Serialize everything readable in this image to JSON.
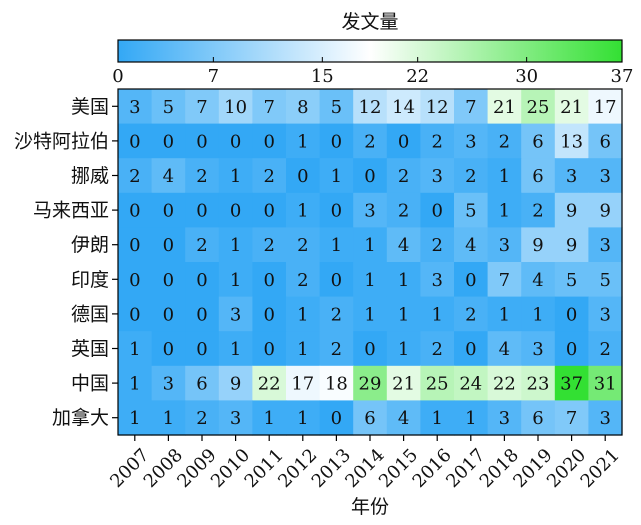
{
  "chart_data": {
    "type": "heatmap",
    "title": "发文量",
    "xlabel": "年份",
    "ylabel": "",
    "x": [
      "2007",
      "2008",
      "2009",
      "2010",
      "2011",
      "2012",
      "2013",
      "2014",
      "2015",
      "2016",
      "2017",
      "2018",
      "2019",
      "2020",
      "2021"
    ],
    "y": [
      "美国",
      "沙特阿拉伯",
      "挪威",
      "马来西亚",
      "伊朗",
      "印度",
      "德国",
      "英国",
      "中国",
      "加拿大"
    ],
    "values": [
      [
        3,
        5,
        7,
        10,
        7,
        8,
        5,
        12,
        14,
        12,
        7,
        21,
        25,
        21,
        17
      ],
      [
        0,
        0,
        0,
        0,
        0,
        1,
        0,
        2,
        0,
        2,
        3,
        2,
        6,
        13,
        6
      ],
      [
        2,
        4,
        2,
        1,
        2,
        0,
        1,
        0,
        2,
        3,
        2,
        1,
        6,
        3,
        3
      ],
      [
        0,
        0,
        0,
        0,
        0,
        1,
        0,
        3,
        2,
        0,
        5,
        1,
        2,
        9,
        9
      ],
      [
        0,
        0,
        2,
        1,
        2,
        2,
        1,
        1,
        4,
        2,
        4,
        3,
        9,
        9,
        3
      ],
      [
        0,
        0,
        0,
        1,
        0,
        2,
        0,
        1,
        1,
        3,
        0,
        7,
        4,
        5,
        5
      ],
      [
        0,
        0,
        0,
        3,
        0,
        1,
        2,
        1,
        1,
        1,
        2,
        1,
        1,
        0,
        3
      ],
      [
        1,
        0,
        0,
        1,
        0,
        1,
        2,
        0,
        1,
        2,
        0,
        4,
        3,
        0,
        2
      ],
      [
        1,
        3,
        6,
        9,
        22,
        17,
        18,
        29,
        21,
        25,
        24,
        22,
        23,
        37,
        31
      ],
      [
        1,
        1,
        2,
        3,
        1,
        1,
        0,
        6,
        4,
        1,
        1,
        3,
        6,
        7,
        3
      ]
    ],
    "colorbar": {
      "min": 0,
      "max": 37,
      "ticks": [
        "0",
        "7",
        "15",
        "22",
        "30",
        "37"
      ],
      "colors": [
        "#33a8f5",
        "#ffffff",
        "#33e033"
      ],
      "placement": "top"
    }
  }
}
